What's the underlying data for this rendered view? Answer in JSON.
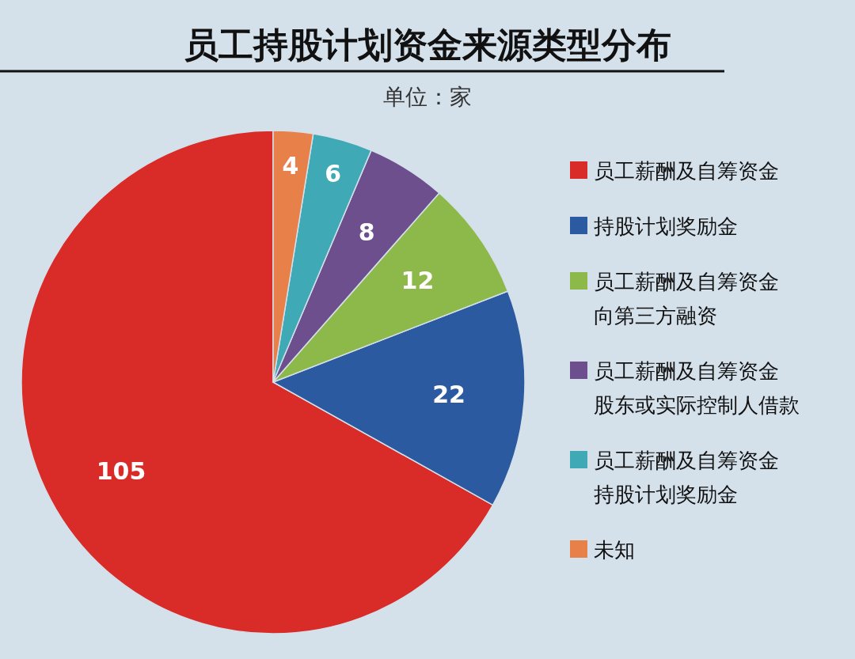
{
  "chart_data": {
    "type": "pie",
    "title": "员工持股计划资金来源类型分布",
    "subtitle": "单位：家",
    "categories": [
      "员工薪酬及自筹资金",
      "持股计划奖励金",
      "员工薪酬及自筹资金向第三方融资",
      "员工薪酬及自筹资金股东或实际控制人借款",
      "员工薪酬及自筹资金持股计划奖励金",
      "未知"
    ],
    "values": [
      105,
      22,
      12,
      8,
      6,
      4
    ],
    "colors": [
      "#d92b27",
      "#2c5aa0",
      "#8db84a",
      "#6d4f8e",
      "#3fa9b5",
      "#e8804a"
    ],
    "data_labels": true,
    "legend": "right"
  }
}
